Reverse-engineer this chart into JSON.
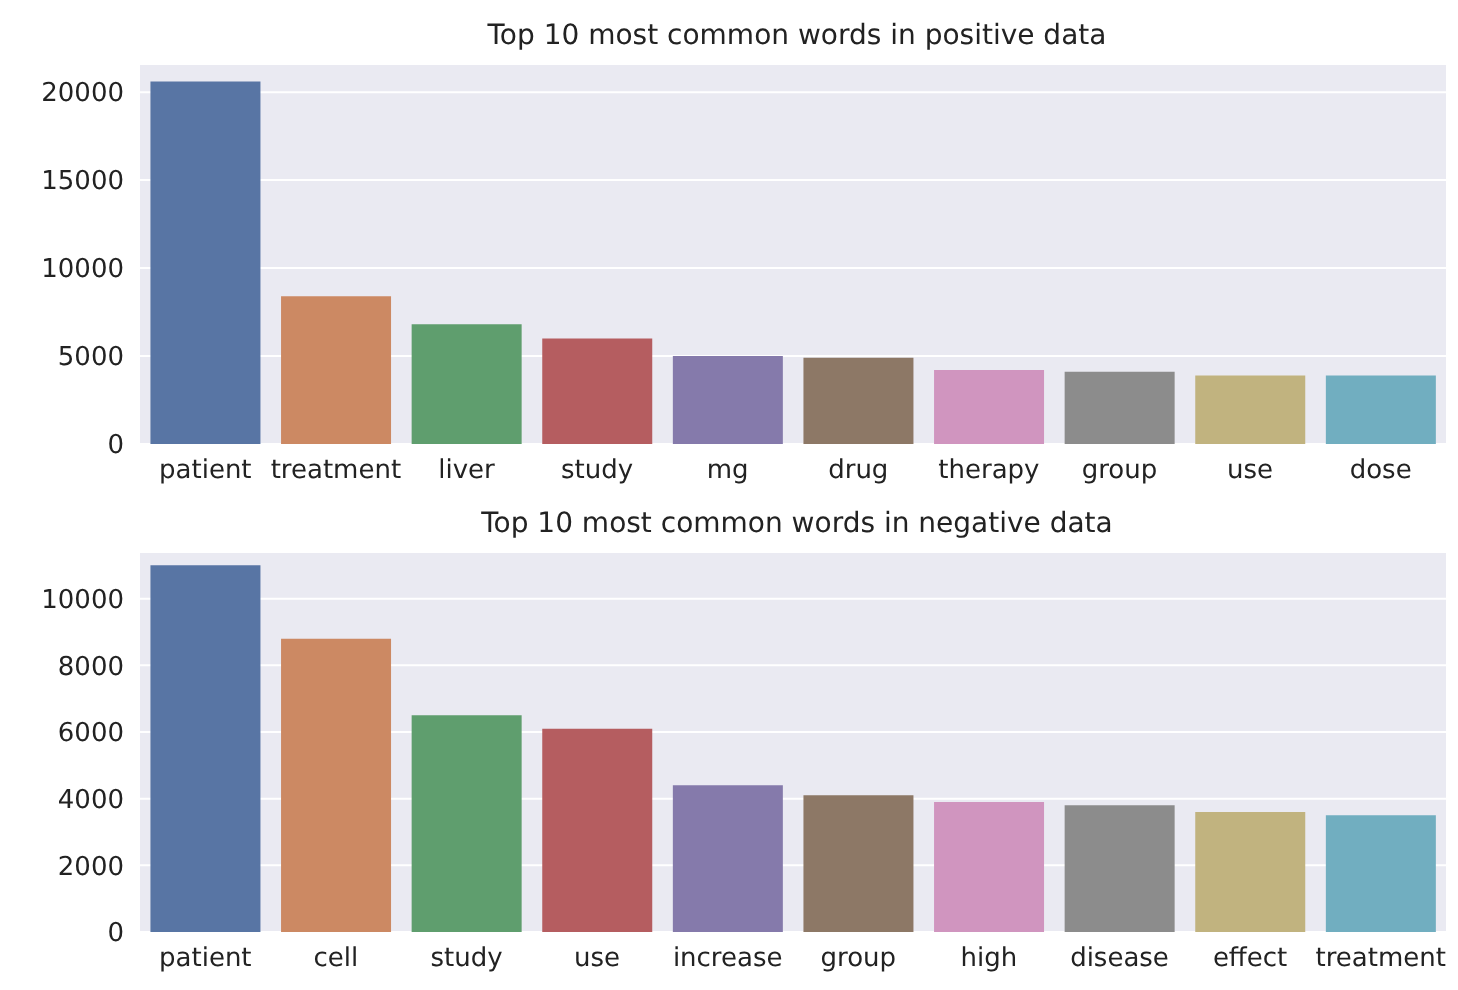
{
  "chart_data": [
    {
      "type": "bar",
      "title": "Top 10 most common words in positive data",
      "categories": [
        "patient",
        "treatment",
        "liver",
        "study",
        "mg",
        "drug",
        "therapy",
        "group",
        "use",
        "dose"
      ],
      "values": [
        20600,
        8400,
        6800,
        6000,
        5000,
        4900,
        4200,
        4100,
        3900,
        3900
      ],
      "colors": [
        "#5875a4",
        "#cc8963",
        "#5f9e6e",
        "#b55d60",
        "#857aab",
        "#8d7866",
        "#d095bf",
        "#8c8c8c",
        "#c1b37f",
        "#71aec0"
      ],
      "ylim": [
        0,
        21600
      ],
      "yticks": [
        0,
        5000,
        10000,
        15000,
        20000
      ],
      "grid": "y"
    },
    {
      "type": "bar",
      "title": "Top 10 most common words in negative data",
      "categories": [
        "patient",
        "cell",
        "study",
        "use",
        "increase",
        "group",
        "high",
        "disease",
        "effect",
        "treatment"
      ],
      "values": [
        11000,
        8800,
        6500,
        6100,
        4400,
        4100,
        3900,
        3800,
        3600,
        3500
      ],
      "colors": [
        "#5875a4",
        "#cc8963",
        "#5f9e6e",
        "#b55d60",
        "#857aab",
        "#8d7866",
        "#d095bf",
        "#8c8c8c",
        "#c1b37f",
        "#71aec0"
      ],
      "ylim": [
        0,
        11400
      ],
      "yticks": [
        0,
        2000,
        4000,
        6000,
        8000,
        10000
      ],
      "grid": "y"
    }
  ]
}
